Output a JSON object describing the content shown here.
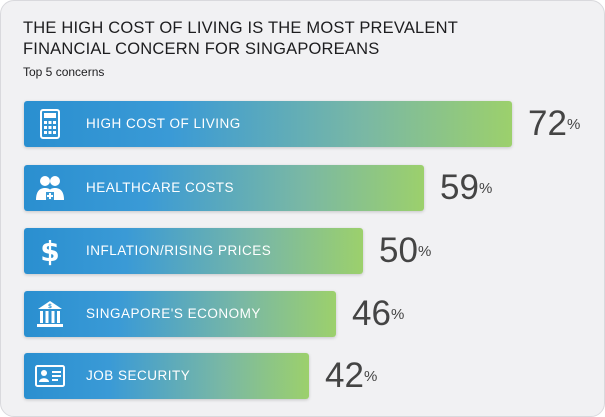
{
  "title_line1": "THE HIGH COST OF LIVING IS THE MOST PREVALENT",
  "title_line2": "FINANCIAL CONCERN FOR SINGAPOREANS",
  "subtitle": "Top 5 concerns",
  "colors": {
    "bar_start": "#2a8fd0",
    "bar_end": "#9cd06c",
    "value": "#444444"
  },
  "chart_data": {
    "type": "bar",
    "orientation": "horizontal",
    "categories": [
      "HIGH COST OF LIVING",
      "HEALTHCARE COSTS",
      "INFLATION/RISING PRICES",
      "SINGAPORE'S ECONOMY",
      "JOB SECURITY"
    ],
    "values": [
      72,
      59,
      50,
      46,
      42
    ],
    "value_labels": [
      "72",
      "59",
      "50",
      "46",
      "42"
    ],
    "unit": "%",
    "icons": [
      "calculator-icon",
      "people-health-icon",
      "dollar-icon",
      "bank-icon",
      "id-card-icon"
    ],
    "title": "THE HIGH COST OF LIVING IS THE MOST PREVALENT FINANCIAL CONCERN FOR SINGAPOREANS",
    "subtitle": "Top 5 concerns",
    "xlabel": "",
    "ylabel": "",
    "grid": false
  }
}
